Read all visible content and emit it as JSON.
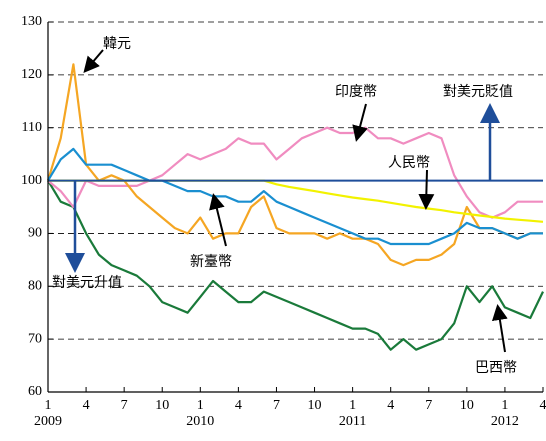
{
  "chart_data": {
    "type": "line",
    "x": [
      "2009-01",
      "2009-02",
      "2009-03",
      "2009-04",
      "2009-05",
      "2009-06",
      "2009-07",
      "2009-08",
      "2009-09",
      "2009-10",
      "2009-11",
      "2009-12",
      "2010-01",
      "2010-02",
      "2010-03",
      "2010-04",
      "2010-05",
      "2010-06",
      "2010-07",
      "2010-08",
      "2010-09",
      "2010-10",
      "2010-11",
      "2010-12",
      "2011-01",
      "2011-02",
      "2011-03",
      "2011-04",
      "2011-05",
      "2011-06",
      "2011-07",
      "2011-08",
      "2011-09",
      "2011-10",
      "2011-11",
      "2011-12",
      "2012-01",
      "2012-02",
      "2012-03",
      "2012-04"
    ],
    "series": [
      {
        "name": "巴西幣",
        "color": "#1a7a3a",
        "values": [
          100,
          96,
          95,
          90,
          86,
          84,
          83,
          82,
          80,
          77,
          76,
          75,
          78,
          81,
          79,
          77,
          77,
          79,
          78,
          77,
          76,
          75,
          74,
          73,
          72,
          72,
          71,
          68,
          70,
          68,
          69,
          70,
          73,
          80,
          77,
          80,
          76,
          75,
          74,
          79
        ]
      },
      {
        "name": "印度幣",
        "color": "#f08cc0",
        "values": [
          100,
          98,
          95,
          100,
          99,
          99,
          99,
          99,
          100,
          101,
          103,
          105,
          104,
          105,
          106,
          108,
          107,
          107,
          104,
          106,
          108,
          109,
          110,
          109,
          109,
          110,
          108,
          108,
          107,
          108,
          109,
          108,
          101,
          97,
          94,
          93,
          94,
          96,
          96,
          96
        ]
      },
      {
        "name": "韓元",
        "color": "#f5a623",
        "values": [
          100,
          108,
          122,
          103,
          100,
          101,
          100,
          97,
          95,
          93,
          91,
          90,
          93,
          89,
          90,
          90,
          95,
          97,
          91,
          90,
          90,
          90,
          89,
          90,
          89,
          89,
          88,
          85,
          84,
          85,
          85,
          86,
          88,
          95,
          91,
          91,
          90,
          89,
          90,
          90
        ]
      },
      {
        "name": "人民幣",
        "color": "#f2f200",
        "values": [
          100,
          100,
          100,
          100,
          100,
          100,
          100,
          100,
          100,
          100,
          100,
          100,
          100,
          100,
          100,
          100,
          100,
          100,
          99.3,
          98.8,
          98.4,
          98,
          97.6,
          97.2,
          96.8,
          96.5,
          96.2,
          95.8,
          95.4,
          95,
          94.7,
          94.4,
          94,
          93.7,
          93.4,
          93.1,
          92.8,
          92.6,
          92.4,
          92.2
        ]
      },
      {
        "name": "新臺幣",
        "color": "#1a8fd0",
        "values": [
          100,
          104,
          106,
          103,
          103,
          103,
          102,
          101,
          100,
          100,
          99,
          98,
          98,
          97,
          97,
          96,
          96,
          98,
          96,
          95,
          94,
          93,
          92,
          91,
          90,
          89,
          89,
          88,
          88,
          88,
          88,
          89,
          90,
          92,
          91,
          91,
          90,
          89,
          90,
          90
        ]
      }
    ],
    "reference_value": 100,
    "reference_color": "#1f4e9a",
    "ylim": [
      60,
      130
    ],
    "yticks": [
      60,
      70,
      80,
      90,
      100,
      110,
      120,
      130
    ],
    "grid": true,
    "xticks": [
      {
        "value": "2009-01",
        "label": "1"
      },
      {
        "value": "2009-04",
        "label": "4"
      },
      {
        "value": "2009-07",
        "label": "7"
      },
      {
        "value": "2009-10",
        "label": "10"
      },
      {
        "value": "2010-01",
        "label": "1"
      },
      {
        "value": "2010-04",
        "label": "4"
      },
      {
        "value": "2010-07",
        "label": "7"
      },
      {
        "value": "2010-10",
        "label": "10"
      },
      {
        "value": "2011-01",
        "label": "1"
      },
      {
        "value": "2011-04",
        "label": "4"
      },
      {
        "value": "2011-07",
        "label": "7"
      },
      {
        "value": "2011-10",
        "label": "10"
      },
      {
        "value": "2012-01",
        "label": "1"
      },
      {
        "value": "2012-04",
        "label": "4"
      }
    ],
    "xtick_years": [
      {
        "value": "2009-01",
        "label": "2009"
      },
      {
        "value": "2010-01",
        "label": "2010"
      },
      {
        "value": "2011-01",
        "label": "2011"
      },
      {
        "value": "2012-01",
        "label": "2012"
      }
    ],
    "annotations": [
      "韓元",
      "印度幣",
      "對美元貶值",
      "人民幣",
      "新臺幣",
      "對美元升值",
      "巴西幣"
    ]
  }
}
